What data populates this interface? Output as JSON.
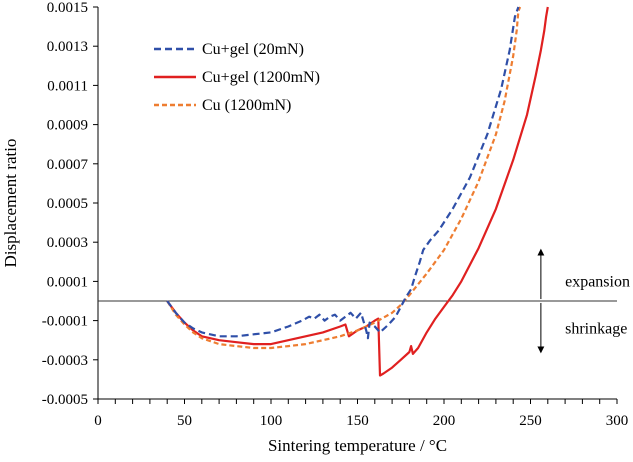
{
  "chart_data": {
    "type": "line",
    "xlabel": "Sintering temperature / °C",
    "ylabel": "Displacement ratio",
    "xlim": [
      0,
      300
    ],
    "ylim": [
      -0.0005,
      0.0015
    ],
    "x_ticks": [
      "0",
      "50",
      "100",
      "150",
      "200",
      "250",
      "300"
    ],
    "y_ticks": [
      "-0.0005",
      "-0.0003",
      "-0.0001",
      "0.0001",
      "0.0003",
      "0.0005",
      "0.0007",
      "0.0009",
      "0.0011",
      "0.0013",
      "0.0015"
    ],
    "x_minor_step": 10,
    "reference_line_y": 0,
    "grid": false,
    "legend_position": "top-left",
    "series": [
      {
        "name": "Cu+gel (20mN)",
        "color": "#2f4fa8",
        "style": "dashed",
        "points": [
          [
            40,
            0
          ],
          [
            45,
            -6e-05
          ],
          [
            50,
            -0.00011
          ],
          [
            55,
            -0.00014
          ],
          [
            60,
            -0.00016
          ],
          [
            70,
            -0.00018
          ],
          [
            80,
            -0.00018
          ],
          [
            90,
            -0.00017
          ],
          [
            100,
            -0.00016
          ],
          [
            110,
            -0.00013
          ],
          [
            118,
            -0.0001
          ],
          [
            122,
            -8e-05
          ],
          [
            125,
            -9e-05
          ],
          [
            128,
            -7e-05
          ],
          [
            131,
            -0.0001
          ],
          [
            134,
            -8e-05
          ],
          [
            137,
            -7e-05
          ],
          [
            140,
            -0.0001
          ],
          [
            143,
            -8e-05
          ],
          [
            146,
            -6e-05
          ],
          [
            149,
            -9e-05
          ],
          [
            152,
            -6e-05
          ],
          [
            155,
            -0.00015
          ],
          [
            156,
            -0.00019
          ],
          [
            157,
            -0.00011
          ],
          [
            160,
            -0.00013
          ],
          [
            163,
            -0.00016
          ],
          [
            168,
            -0.00012
          ],
          [
            172,
            -8e-05
          ],
          [
            175,
            -3e-05
          ],
          [
            178,
            2e-05
          ],
          [
            181,
            6e-05
          ],
          [
            183,
            0.00012
          ],
          [
            186,
            0.0002
          ],
          [
            188,
            0.00026
          ],
          [
            192,
            0.00031
          ],
          [
            197,
            0.00036
          ],
          [
            205,
            0.00047
          ],
          [
            215,
            0.00063
          ],
          [
            225,
            0.00085
          ],
          [
            233,
            0.00108
          ],
          [
            238,
            0.00128
          ],
          [
            241,
            0.00145
          ],
          [
            243,
            0.0015
          ]
        ]
      },
      {
        "name": "Cu+gel (1200mN)",
        "color": "#e02020",
        "style": "solid",
        "points": [
          [
            40,
            0
          ],
          [
            45,
            -6e-05
          ],
          [
            50,
            -0.00011
          ],
          [
            55,
            -0.00015
          ],
          [
            60,
            -0.00018
          ],
          [
            70,
            -0.0002
          ],
          [
            80,
            -0.00021
          ],
          [
            90,
            -0.00022
          ],
          [
            100,
            -0.00022
          ],
          [
            110,
            -0.0002
          ],
          [
            120,
            -0.00018
          ],
          [
            130,
            -0.00016
          ],
          [
            140,
            -0.00013
          ],
          [
            143,
            -0.00012
          ],
          [
            145,
            -0.00018
          ],
          [
            150,
            -0.00015
          ],
          [
            155,
            -0.00013
          ],
          [
            160,
            -0.0001
          ],
          [
            162,
            -9e-05
          ],
          [
            163,
            -0.00038
          ],
          [
            165,
            -0.00037
          ],
          [
            170,
            -0.00034
          ],
          [
            175,
            -0.0003
          ],
          [
            180,
            -0.00026
          ],
          [
            181,
            -0.00023
          ],
          [
            182,
            -0.00027
          ],
          [
            185,
            -0.00024
          ],
          [
            190,
            -0.00016
          ],
          [
            195,
            -9e-05
          ],
          [
            200,
            -3e-05
          ],
          [
            205,
            3e-05
          ],
          [
            210,
            0.0001
          ],
          [
            220,
            0.00027
          ],
          [
            230,
            0.00047
          ],
          [
            240,
            0.00072
          ],
          [
            248,
            0.00095
          ],
          [
            253,
            0.00115
          ],
          [
            256,
            0.00128
          ],
          [
            258,
            0.00138
          ],
          [
            259,
            0.00145
          ],
          [
            260,
            0.0015
          ]
        ]
      },
      {
        "name": "Cu (1200mN)",
        "color": "#ee7d31",
        "style": "dashed",
        "points": [
          [
            40,
            0
          ],
          [
            45,
            -7e-05
          ],
          [
            50,
            -0.00012
          ],
          [
            55,
            -0.00016
          ],
          [
            60,
            -0.00019
          ],
          [
            70,
            -0.00022
          ],
          [
            80,
            -0.00023
          ],
          [
            90,
            -0.00024
          ],
          [
            100,
            -0.00024
          ],
          [
            110,
            -0.00023
          ],
          [
            120,
            -0.00022
          ],
          [
            130,
            -0.0002
          ],
          [
            140,
            -0.00018
          ],
          [
            150,
            -0.00015
          ],
          [
            160,
            -0.00011
          ],
          [
            170,
            -6e-05
          ],
          [
            175,
            -2e-05
          ],
          [
            180,
            3e-05
          ],
          [
            190,
            0.00014
          ],
          [
            200,
            0.00026
          ],
          [
            210,
            0.00042
          ],
          [
            220,
            0.00061
          ],
          [
            230,
            0.00085
          ],
          [
            235,
            0.00102
          ],
          [
            240,
            0.00125
          ],
          [
            242,
            0.00138
          ],
          [
            243,
            0.00148
          ],
          [
            244,
            0.0015
          ]
        ]
      }
    ],
    "annotations": [
      {
        "text": "expansion",
        "x": 270,
        "y": 0.0001
      },
      {
        "text": "shrinkage",
        "x": 270,
        "y": -0.00014
      }
    ],
    "arrows": [
      {
        "x": 256,
        "from_y": 1e-05,
        "to_y": 0.00026
      },
      {
        "x": 256,
        "from_y": -1e-05,
        "to_y": -0.00026
      }
    ]
  }
}
